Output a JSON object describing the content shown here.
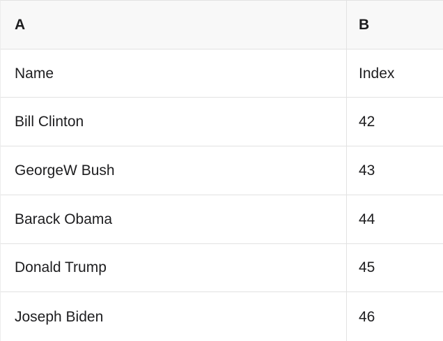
{
  "table": {
    "header": {
      "col_a": "A",
      "col_b": "B"
    },
    "rows": [
      [
        "Name",
        "Index"
      ],
      [
        "Bill Clinton",
        "42"
      ],
      [
        "GeorgeW Bush",
        "43"
      ],
      [
        "Barack Obama",
        "44"
      ],
      [
        "Donald Trump",
        "45"
      ],
      [
        "Joseph Biden",
        "46"
      ]
    ],
    "colors": {
      "header_bg": "#f8f8f8",
      "border": "#e2e2e2",
      "text": "#1d1d1f",
      "row_bg": "#ffffff"
    }
  }
}
